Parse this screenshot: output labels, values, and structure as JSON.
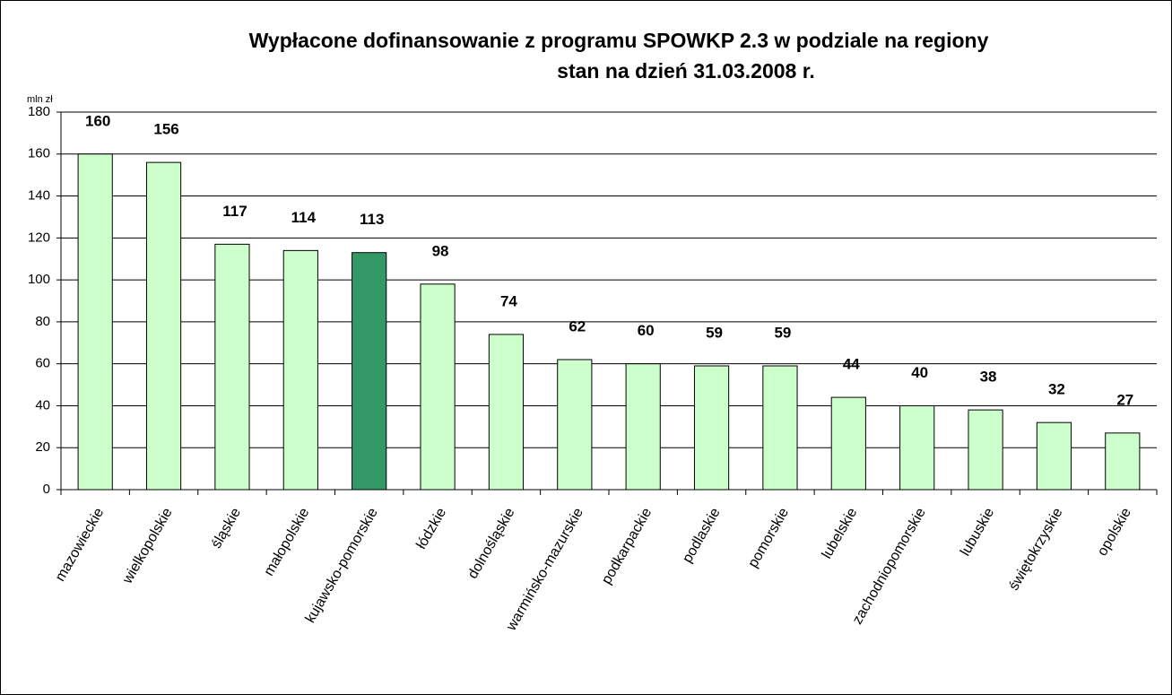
{
  "chart_data": {
    "type": "bar",
    "title": "Wypłacone dofinansowanie z programu SPOWKP 2.3 w podziale na regiony",
    "subtitle": "stan na dzień 31.03.2008 r.",
    "y_axis_label": "mln zł",
    "categories": [
      "mazowieckie",
      "wielkopolskie",
      "śląskie",
      "małopolskie",
      "kujawsko-pomorskie",
      "łódzkie",
      "dolnośląskie",
      "warmińsko-mazurskie",
      "podkarpackie",
      "podlaskie",
      "pomorskie",
      "lubelskie",
      "zachodniopomorskie",
      "lubuskie",
      "świętokrzyskie",
      "opolskie"
    ],
    "values": [
      160,
      156,
      117,
      114,
      113,
      98,
      74,
      62,
      60,
      59,
      59,
      44,
      40,
      38,
      32,
      27
    ],
    "colors": [
      "#ccffcc",
      "#ccffcc",
      "#ccffcc",
      "#ccffcc",
      "#339966",
      "#ccffcc",
      "#ccffcc",
      "#ccffcc",
      "#ccffcc",
      "#ccffcc",
      "#ccffcc",
      "#ccffcc",
      "#ccffcc",
      "#ccffcc",
      "#ccffcc",
      "#ccffcc"
    ],
    "ylim": [
      0,
      180
    ],
    "yticks": [
      0,
      20,
      40,
      60,
      80,
      100,
      120,
      140,
      160,
      180
    ],
    "grid": true
  }
}
